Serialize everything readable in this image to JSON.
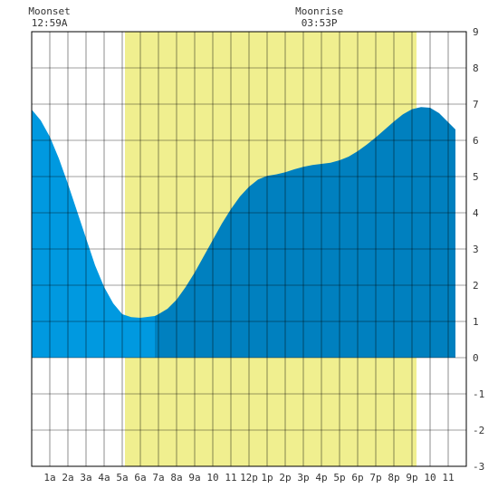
{
  "chart_data": {
    "type": "area",
    "title": "",
    "xlabel": "",
    "ylabel": "",
    "xlim": [
      0,
      24
    ],
    "ylim": [
      -3,
      9
    ],
    "x_tick_labels": [
      "1a",
      "2a",
      "3a",
      "4a",
      "5a",
      "6a",
      "7a",
      "8a",
      "9a",
      "10",
      "11",
      "12p",
      "1p",
      "2p",
      "3p",
      "4p",
      "5p",
      "6p",
      "7p",
      "8p",
      "9p",
      "10",
      "11"
    ],
    "y_tick_labels": [
      "9",
      "8",
      "7",
      "6",
      "5",
      "4",
      "3",
      "2",
      "1",
      "0",
      "-1",
      "-2",
      "-3"
    ],
    "daylight_shading": {
      "start_hour": 5.15,
      "end_hour": 21.25,
      "color": "#f0ef8f"
    },
    "annotations": [
      {
        "label": "Moonset",
        "time": "12:59A",
        "hour": 0.98
      },
      {
        "label": "Moonrise",
        "time": "03:53P",
        "hour": 15.88
      }
    ],
    "series": [
      {
        "split_hour": 6.8,
        "color_before": "#0099e0",
        "color_after": "#0080bf",
        "x": [
          0,
          0.5,
          1,
          1.5,
          2,
          2.5,
          3,
          3.5,
          4,
          4.5,
          5,
          5.5,
          6,
          6.5,
          6.8,
          7,
          7.5,
          8,
          8.5,
          9,
          9.5,
          10,
          10.5,
          11,
          11.5,
          12,
          12.5,
          13,
          13.5,
          14,
          14.5,
          15,
          15.5,
          16,
          16.5,
          17,
          17.5,
          18,
          18.5,
          19,
          19.5,
          20,
          20.5,
          21,
          21.5,
          22,
          22.5,
          23,
          23.5,
          24
        ],
        "y": [
          6.85,
          6.55,
          6.1,
          5.5,
          4.8,
          4.05,
          3.3,
          2.55,
          1.95,
          1.5,
          1.2,
          1.12,
          1.1,
          1.13,
          1.15,
          1.2,
          1.35,
          1.6,
          1.95,
          2.35,
          2.8,
          3.25,
          3.7,
          4.1,
          4.45,
          4.72,
          4.92,
          5.02,
          5.06,
          5.12,
          5.2,
          5.27,
          5.32,
          5.35,
          5.38,
          5.45,
          5.55,
          5.7,
          5.88,
          6.08,
          6.3,
          6.52,
          6.72,
          6.86,
          6.92,
          6.9,
          6.75,
          6.5,
          6.25,
          6.0
        ]
      }
    ],
    "series_visible_until_hour": 23.4
  }
}
